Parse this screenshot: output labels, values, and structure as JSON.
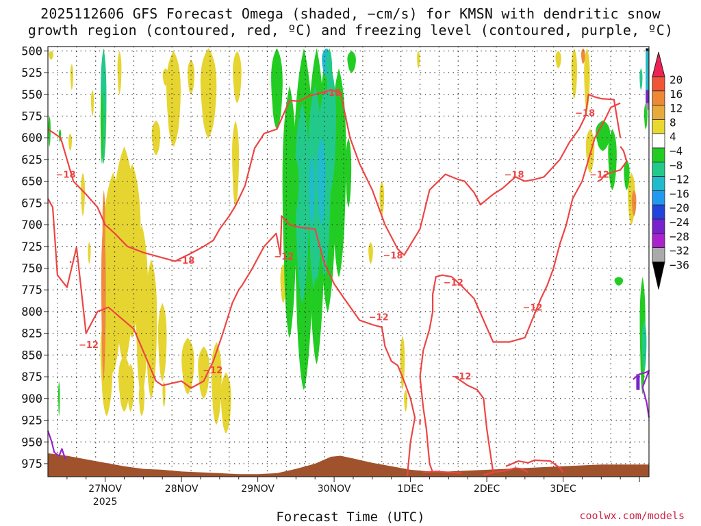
{
  "chart_data": {
    "type": "time-height contour",
    "title_line1": "2025112606 GFS Forecast Omega (shaded, −cm/s) for KMSN with dendritic snow",
    "title_line2": "growth region (contoured, red, ºC) and freezing level (contoured, purple, ºC)",
    "xlabel": "Forecast Time (UTC)",
    "credit": "coolwx.com/models",
    "x_range_hours": [
      0,
      189
    ],
    "y_range_hpa": [
      990,
      495
    ],
    "y_ticks": [
      500,
      525,
      550,
      575,
      600,
      625,
      650,
      675,
      700,
      725,
      750,
      775,
      800,
      825,
      850,
      875,
      900,
      925,
      950,
      975
    ],
    "x_ticks": [
      {
        "hour": 18,
        "label": "27NOV",
        "sub": "2025"
      },
      {
        "hour": 42,
        "label": "28NOV",
        "sub": ""
      },
      {
        "hour": 66,
        "label": "29NOV",
        "sub": ""
      },
      {
        "hour": 90,
        "label": "30NOV",
        "sub": ""
      },
      {
        "hour": 114,
        "label": "1DEC",
        "sub": ""
      },
      {
        "hour": 138,
        "label": "2DEC",
        "sub": ""
      },
      {
        "hour": 162,
        "label": "3DEC",
        "sub": ""
      }
    ],
    "colorbar": {
      "labels": [
        "20",
        "16",
        "12",
        "8",
        "4",
        "−4",
        "−8",
        "−12",
        "−16",
        "−20",
        "−24",
        "−28",
        "−32",
        "−36"
      ],
      "colors": [
        "#ee2255",
        "#f05535",
        "#ee8833",
        "#e8aa3a",
        "#e8d830",
        "#ffffff",
        "#22cc22",
        "#22c98a",
        "#22bbcc",
        "#2299ee",
        "#2244dd",
        "#7722cc",
        "#aa22cc",
        "#aaaaaa",
        "#000000"
      ]
    },
    "colors": {
      "dgz_contour": "#ee4444",
      "freezing_contour": "#9922cc",
      "terrain": "#a0522d",
      "yellow": "#e6d430",
      "orange": "#f08a40",
      "green": "#22cc22",
      "teal": "#22c98a",
      "cyan": "#22bbcc"
    },
    "contour_labels": [
      {
        "text": "−18",
        "hour": 5.6,
        "p": 642
      },
      {
        "text": "−12",
        "hour": 12.8,
        "p": 838
      },
      {
        "text": "−18",
        "hour": 43.0,
        "p": 741
      },
      {
        "text": "−12",
        "hour": 51.8,
        "p": 867
      },
      {
        "text": "−12",
        "hour": 74.2,
        "p": 736
      },
      {
        "text": "−18",
        "hour": 89.0,
        "p": 548
      },
      {
        "text": "−12",
        "hour": 104.0,
        "p": 806
      },
      {
        "text": "−18",
        "hour": 108.5,
        "p": 735
      },
      {
        "text": "−12",
        "hour": 127.5,
        "p": 766
      },
      {
        "text": "−12",
        "hour": 130.0,
        "p": 874
      },
      {
        "text": "−18",
        "hour": 146.6,
        "p": 642
      },
      {
        "text": "−12",
        "hour": 152.4,
        "p": 795
      },
      {
        "text": "−18",
        "hour": 168.9,
        "p": 571
      },
      {
        "text": "−12",
        "hour": 173.4,
        "p": 642
      }
    ],
    "dgz_lower_bound_minus12": [
      [
        0,
        670
      ],
      [
        1.5,
        680
      ],
      [
        3,
        758
      ],
      [
        6,
        772
      ],
      [
        9,
        726
      ],
      [
        12,
        825
      ],
      [
        15.6,
        800
      ],
      [
        19,
        795
      ],
      [
        27,
        820
      ],
      [
        34,
        880
      ],
      [
        36,
        885
      ],
      [
        42,
        880
      ],
      [
        45,
        888
      ],
      [
        49,
        880
      ],
      [
        52,
        857
      ],
      [
        55,
        825
      ],
      [
        58,
        790
      ],
      [
        60,
        775
      ],
      [
        61,
        770
      ],
      [
        64,
        752
      ],
      [
        68,
        725
      ],
      [
        71.8,
        710
      ],
      [
        73.1,
        735
      ],
      [
        73.5,
        690
      ],
      [
        76,
        700
      ],
      [
        79,
        703
      ],
      [
        84,
        705
      ],
      [
        87,
        745
      ],
      [
        90,
        768
      ],
      [
        93,
        784
      ],
      [
        98,
        810
      ],
      [
        102,
        815
      ],
      [
        105,
        818
      ],
      [
        106,
        840
      ],
      [
        108,
        857
      ],
      [
        110,
        862
      ],
      [
        112,
        880
      ],
      [
        114,
        900
      ],
      [
        115.4,
        922
      ],
      [
        114,
        950
      ],
      [
        113,
        990
      ]
    ],
    "dgz_upper_bound_minus18": [
      [
        0,
        590
      ],
      [
        4,
        600
      ],
      [
        6,
        625
      ],
      [
        8,
        650
      ],
      [
        12,
        665
      ],
      [
        15.6,
        680
      ],
      [
        18,
        700
      ],
      [
        21,
        710
      ],
      [
        25,
        725
      ],
      [
        30,
        732
      ],
      [
        36,
        738
      ],
      [
        40,
        742
      ],
      [
        45,
        733
      ],
      [
        49,
        725
      ],
      [
        52,
        718
      ],
      [
        54,
        705
      ],
      [
        57,
        690
      ],
      [
        59,
        678
      ],
      [
        62,
        655
      ],
      [
        65,
        612
      ],
      [
        68,
        595
      ],
      [
        72,
        590
      ],
      [
        76,
        557
      ],
      [
        79,
        558
      ],
      [
        82,
        552
      ],
      [
        86,
        548
      ],
      [
        89,
        545
      ],
      [
        92,
        548
      ],
      [
        95,
        600
      ],
      [
        98,
        630
      ],
      [
        102,
        660
      ],
      [
        106,
        700
      ],
      [
        110,
        728
      ],
      [
        112,
        735
      ],
      [
        117,
        705
      ],
      [
        120,
        660
      ],
      [
        125,
        642
      ],
      [
        129,
        648
      ],
      [
        131,
        650
      ],
      [
        134,
        663
      ],
      [
        136,
        677
      ],
      [
        140,
        665
      ],
      [
        143,
        658
      ],
      [
        147,
        645
      ],
      [
        150,
        650
      ],
      [
        153,
        648
      ],
      [
        156,
        645
      ],
      [
        161,
        625
      ],
      [
        164,
        605
      ],
      [
        167,
        590
      ],
      [
        169,
        575
      ],
      [
        170,
        550
      ],
      [
        172,
        553
      ],
      [
        174,
        555
      ],
      [
        178,
        556
      ],
      [
        180,
        600
      ]
    ],
    "dgz_right_minus12": [
      [
        173,
        650
      ],
      [
        174,
        648
      ],
      [
        175,
        643
      ],
      [
        177,
        640
      ],
      [
        180,
        637
      ],
      [
        182,
        627
      ],
      [
        181,
        615
      ],
      [
        180,
        610
      ]
    ],
    "dgz_loop_minus12_a": [
      [
        127,
        760
      ],
      [
        124,
        758
      ],
      [
        122,
        760
      ],
      [
        121,
        780
      ],
      [
        121,
        800
      ],
      [
        120,
        820
      ],
      [
        118,
        845
      ],
      [
        117,
        875
      ],
      [
        118,
        910
      ],
      [
        119,
        935
      ],
      [
        120,
        975
      ],
      [
        121,
        985
      ]
    ],
    "dgz_loop_minus12_b": [
      [
        127,
        760
      ],
      [
        130,
        770
      ],
      [
        134,
        785
      ],
      [
        137,
        810
      ],
      [
        140,
        835
      ],
      [
        145,
        835
      ],
      [
        150,
        830
      ],
      [
        155,
        785
      ],
      [
        157,
        770
      ],
      [
        159,
        750
      ],
      [
        161,
        722
      ],
      [
        163,
        700
      ],
      [
        165,
        670
      ],
      [
        168,
        650
      ],
      [
        170,
        625
      ],
      [
        172,
        600
      ],
      [
        175,
        580
      ],
      [
        177,
        565
      ],
      [
        180,
        560
      ]
    ],
    "dgz_small_loop_minus12": [
      [
        128,
        875
      ],
      [
        130,
        880
      ],
      [
        132,
        885
      ],
      [
        135,
        890
      ],
      [
        137,
        900
      ],
      [
        138,
        935
      ],
      [
        139,
        960
      ],
      [
        140,
        985
      ]
    ],
    "freezing_contour_path": [
      [
        0,
        937
      ],
      [
        1.2,
        950
      ],
      [
        2,
        962
      ],
      [
        3.5,
        966
      ],
      [
        4.4,
        958
      ],
      [
        5.5,
        970
      ]
    ],
    "freezing_contour_right": [
      [
        184,
        878
      ],
      [
        186,
        872
      ],
      [
        188,
        870
      ],
      [
        189,
        868
      ],
      [
        187,
        887
      ],
      [
        188.3,
        905
      ],
      [
        189,
        922
      ]
    ]
  }
}
